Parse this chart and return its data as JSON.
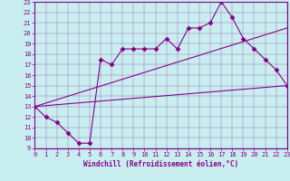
{
  "xlabel": "Windchill (Refroidissement éolien,°C)",
  "bg_color": "#c8eef0",
  "line_color": "#880088",
  "xmin": 0,
  "xmax": 23,
  "ymin": 9,
  "ymax": 23,
  "line1_x": [
    0,
    1,
    2,
    3,
    4,
    5,
    6,
    7,
    8,
    9,
    10,
    11,
    12,
    13,
    14,
    15,
    16,
    17,
    18,
    19,
    20,
    21,
    22,
    23
  ],
  "line1_y": [
    13,
    12,
    11.5,
    10.5,
    9.5,
    9.5,
    17.5,
    17.0,
    18.5,
    18.5,
    18.5,
    18.5,
    19.5,
    18.5,
    20.5,
    20.5,
    21.0,
    23.0,
    21.5,
    19.5,
    18.5,
    17.5,
    16.5,
    15.0
  ],
  "line2_x": [
    0,
    23
  ],
  "line2_y": [
    13,
    15.0
  ],
  "line3_x": [
    0,
    23
  ],
  "line3_y": [
    13,
    20.5
  ],
  "marker": "D",
  "marker_size": 2.5
}
